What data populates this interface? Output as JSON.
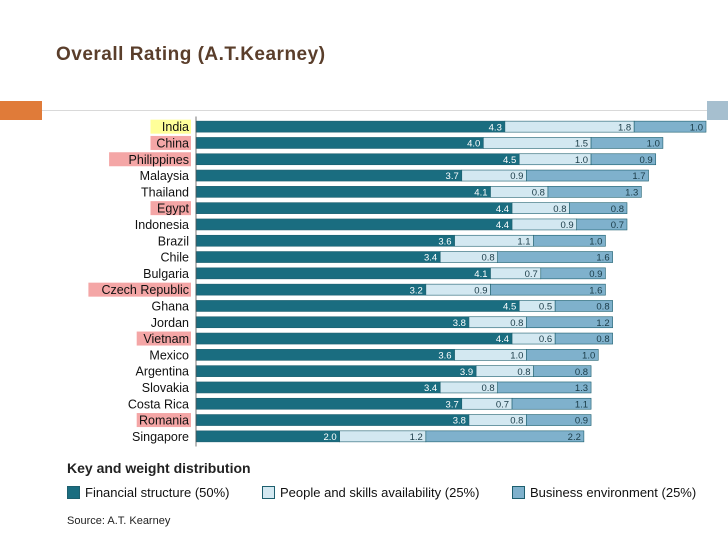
{
  "page": {
    "title": "Overall Rating (A.T.Kearney)",
    "title_color": "#5a3e2b",
    "deco_left_color": "#e07b39",
    "deco_right_color": "#a6bfcf"
  },
  "chart_data": {
    "type": "bar",
    "stacked": true,
    "orientation": "horizontal",
    "categories": [
      "India",
      "China",
      "Philippines",
      "Malaysia",
      "Thailand",
      "Egypt",
      "Indonesia",
      "Brazil",
      "Chile",
      "Bulgaria",
      "Czech Republic",
      "Ghana",
      "Jordan",
      "Vietnam",
      "Mexico",
      "Argentina",
      "Slovakia",
      "Costa Rica",
      "Romania",
      "Singapore"
    ],
    "highlight": {
      "India": "#ffff99",
      "China": "#f4a6a6",
      "Philippines": "#f4a6a6",
      "Egypt": "#f4a6a6",
      "Czech Republic": "#f4a6a6",
      "Vietnam": "#f4a6a6",
      "Romania": "#f4a6a6"
    },
    "series": [
      {
        "name": "Financial structure (50%)",
        "color": "#1a6d80",
        "values": [
          4.3,
          4.0,
          4.5,
          3.7,
          4.1,
          4.4,
          4.4,
          3.6,
          3.4,
          4.1,
          3.2,
          4.5,
          3.8,
          4.4,
          3.6,
          3.9,
          3.4,
          3.7,
          3.8,
          2.0
        ]
      },
      {
        "name": "People and skills availability (25%)",
        "color": "#d3e8f1",
        "values": [
          1.8,
          1.5,
          1.0,
          0.9,
          0.8,
          0.8,
          0.9,
          1.1,
          0.8,
          0.7,
          0.9,
          0.5,
          0.8,
          0.6,
          1.0,
          0.8,
          0.8,
          0.7,
          0.8,
          1.2
        ]
      },
      {
        "name": "Business environment (25%)",
        "color": "#7fb1cc",
        "values": [
          1.0,
          1.0,
          0.9,
          1.7,
          1.3,
          0.8,
          0.7,
          1.0,
          1.6,
          0.9,
          1.6,
          0.8,
          1.2,
          0.8,
          1.0,
          0.8,
          1.3,
          1.1,
          0.9,
          2.2
        ]
      }
    ],
    "labels": {
      "financial": [
        "4.3",
        "4.0",
        "4.5",
        "3.7",
        "4.1",
        "4.4",
        "4.4",
        "3.6",
        "3.4",
        "4.1",
        "3.2",
        "4.5",
        "3.8",
        "4.4",
        "3.6",
        "3.9",
        "3.4",
        "3.7",
        "3.8",
        "2.0"
      ],
      "people": [
        "1.8",
        "1.5",
        "1.0",
        "0.9",
        "0.8",
        "0.8",
        "0.9",
        "1.1",
        "0.8",
        "0.7",
        "0.9",
        "0.5",
        "0.8",
        "0.6",
        "1.0",
        "0.8",
        "0.8",
        "0.7",
        "0.8",
        "1.2"
      ],
      "business": [
        "1.0",
        "1.0",
        "0.9",
        "1.7",
        "1.3",
        "0.8",
        "0.7",
        "1.0",
        "1.6",
        "0.9",
        "1.6",
        "0.8",
        "1.2",
        "0.8",
        "1.0",
        "0.8",
        "1.3",
        "1.1",
        "0.9",
        "2.2"
      ]
    },
    "xlim": [
      0,
      7.1
    ],
    "legend_title": "Key and weight distribution",
    "legend_placement": "bottom",
    "grid": false
  },
  "legend": {
    "title": "Key and weight distribution",
    "items": [
      {
        "label": "Financial structure (50%)",
        "color": "#1a6d80"
      },
      {
        "label": "People and skills availability (25%)",
        "color": "#d3e8f1"
      },
      {
        "label": "Business environment (25%)",
        "color": "#7fb1cc"
      }
    ]
  },
  "source": "Source: A.T. Kearney"
}
